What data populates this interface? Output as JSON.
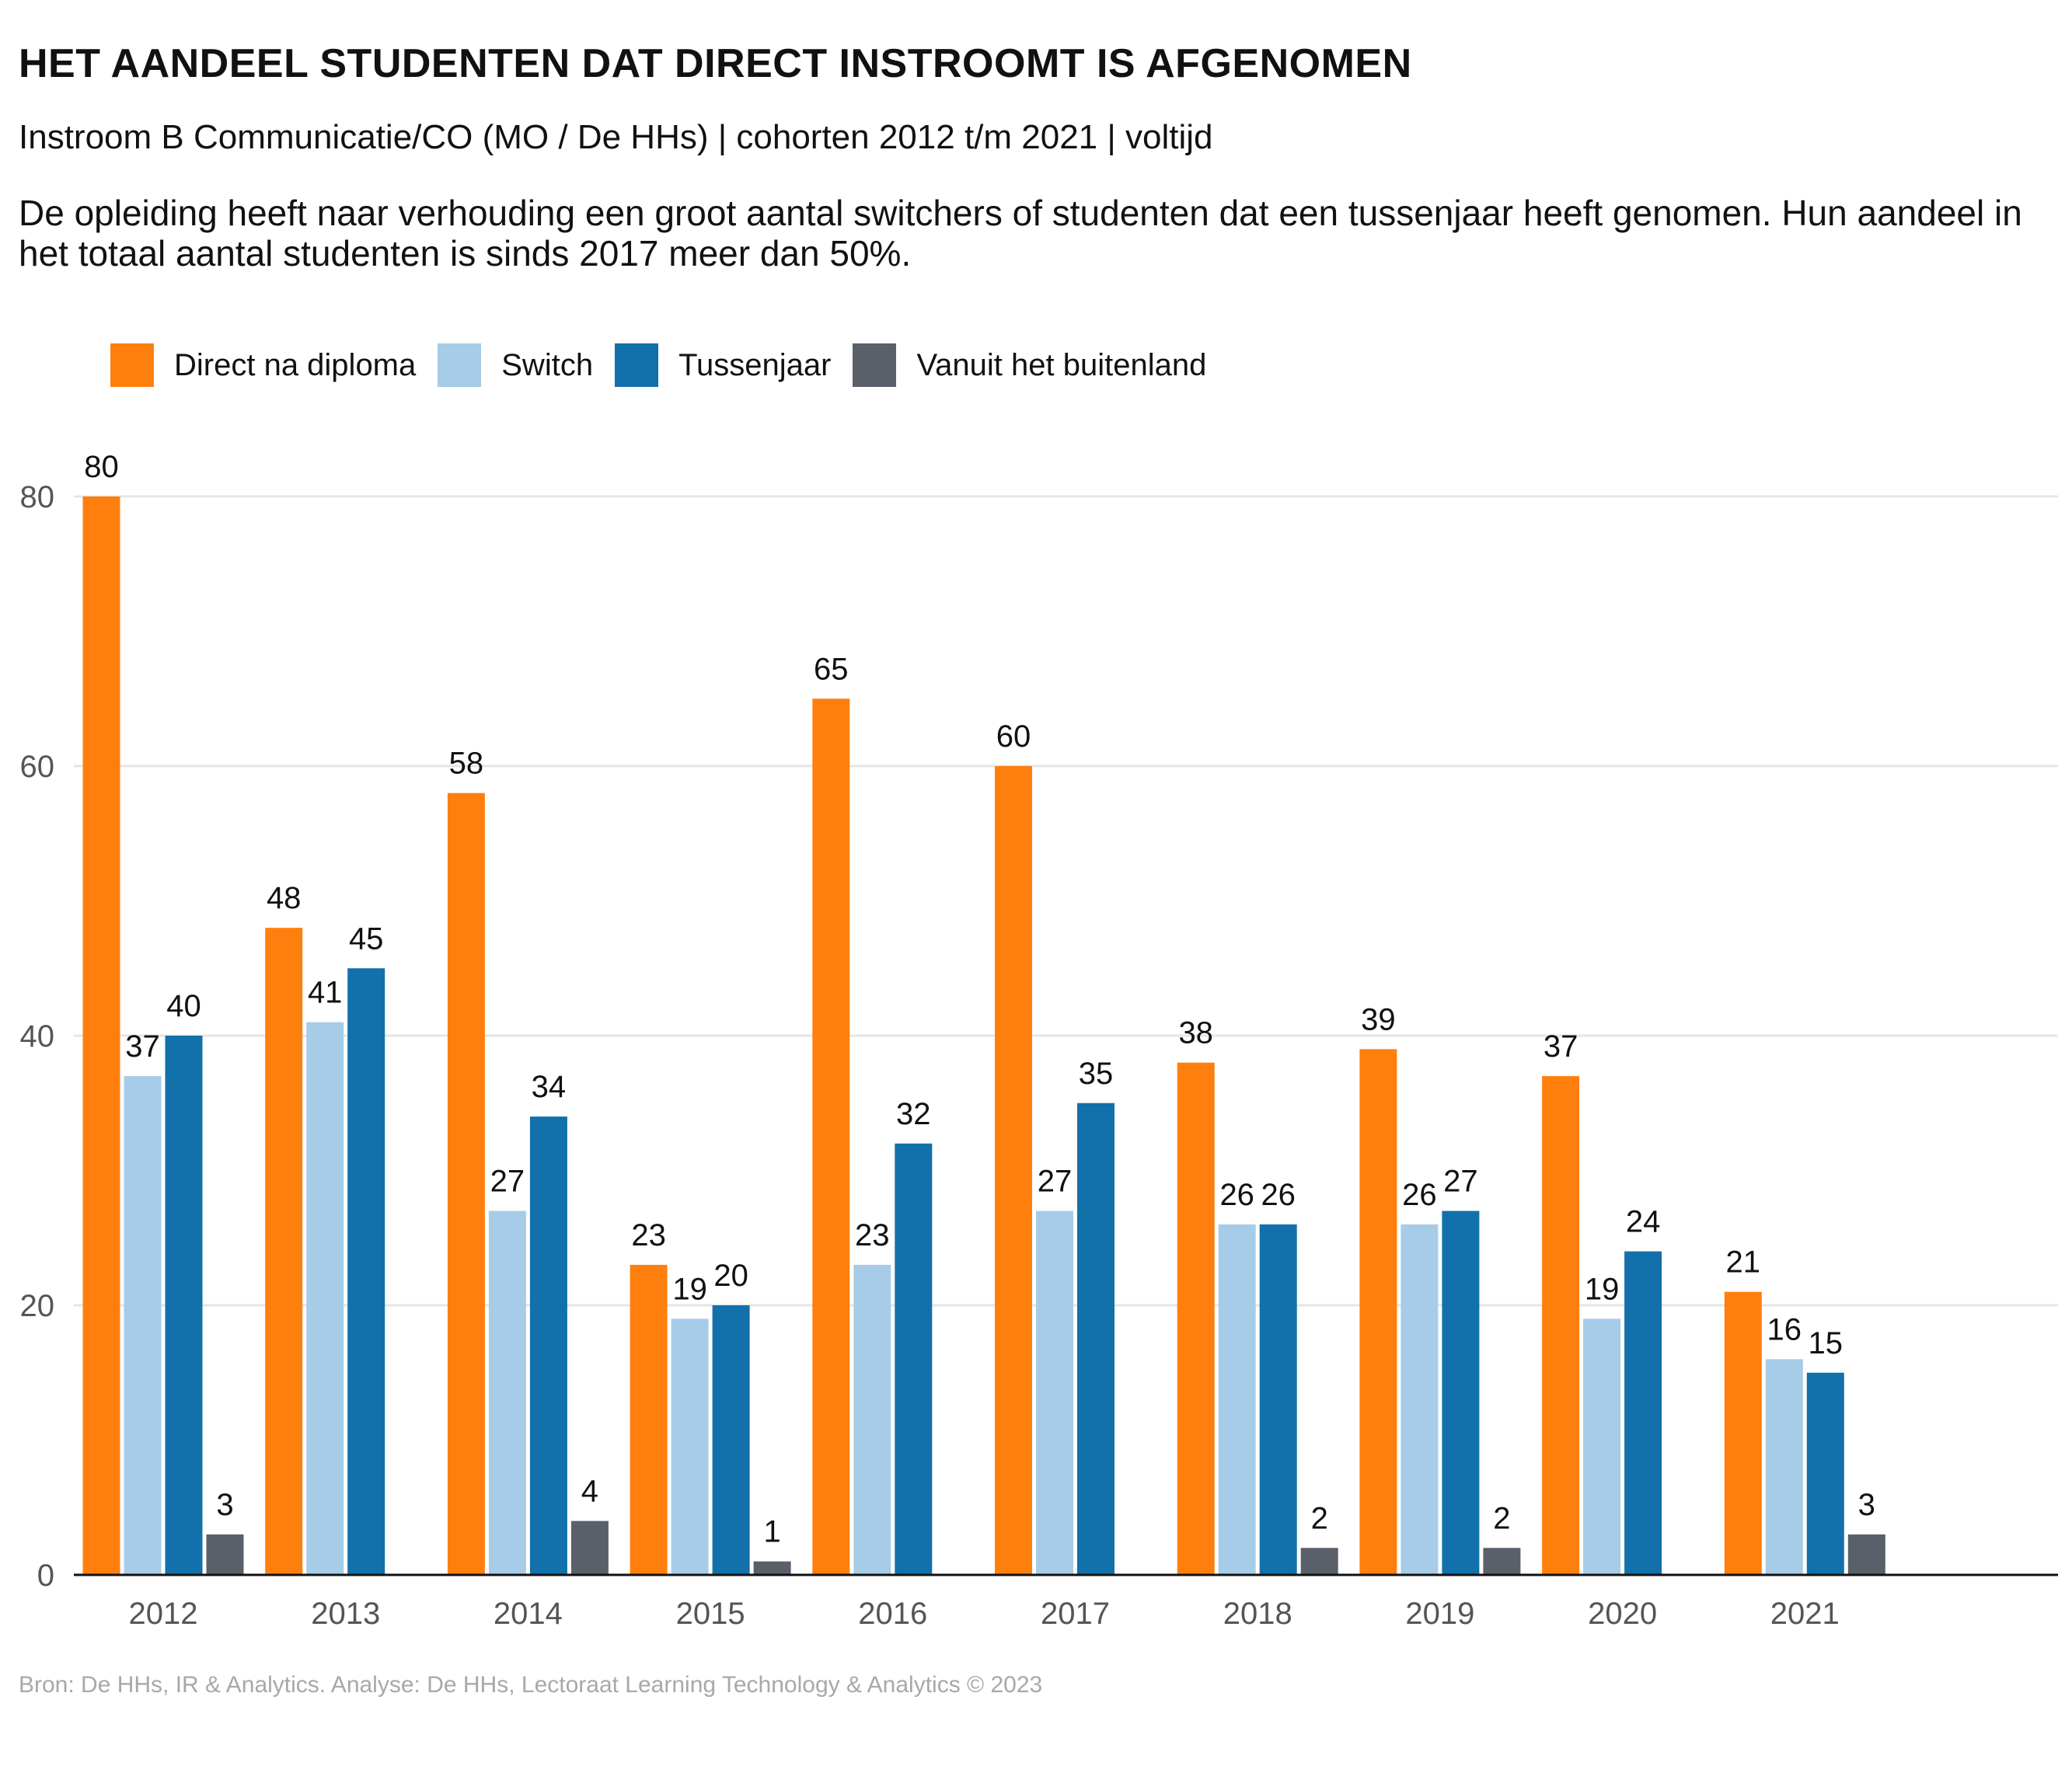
{
  "chart_data": {
    "type": "bar",
    "title": "HET AANDEEL STUDENTEN DAT DIRECT INSTROOMT IS AFGENOMEN",
    "subtitle": "Instroom B Communicatie/CO (MO / De HHs) | cohorten 2012 t/m 2021 | voltijd",
    "description": "De opleiding heeft naar verhouding een groot aantal switchers of studenten dat een tussenjaar heeft genomen. Hun aandeel in het totaal aantal studenten is sinds 2017 meer dan 50%.",
    "source": "Bron: De HHs, IR & Analytics. Analyse: De HHs, Lectoraat Learning Technology & Analytics © 2023",
    "categories": [
      "2012",
      "2013",
      "2014",
      "2015",
      "2016",
      "2017",
      "2018",
      "2019",
      "2020",
      "2021"
    ],
    "series": [
      {
        "name": "Direct na diploma",
        "color": "#FF7F0E",
        "values": [
          80,
          48,
          58,
          23,
          65,
          60,
          38,
          39,
          37,
          21
        ]
      },
      {
        "name": "Switch",
        "color": "#A6CCE8",
        "values": [
          37,
          41,
          27,
          19,
          23,
          27,
          26,
          26,
          19,
          16
        ]
      },
      {
        "name": "Tussenjaar",
        "color": "#1270AA",
        "values": [
          40,
          45,
          34,
          20,
          32,
          35,
          26,
          27,
          24,
          15
        ]
      },
      {
        "name": "Vanuit het buitenland",
        "color": "#5A606A",
        "values": [
          3,
          null,
          4,
          1,
          null,
          null,
          2,
          2,
          null,
          3
        ]
      }
    ],
    "yticks": [
      0,
      20,
      40,
      60,
      80
    ],
    "ylim": [
      0,
      80
    ],
    "xlabel": "",
    "ylabel": "",
    "grid": true,
    "legend_position": "top-left"
  }
}
